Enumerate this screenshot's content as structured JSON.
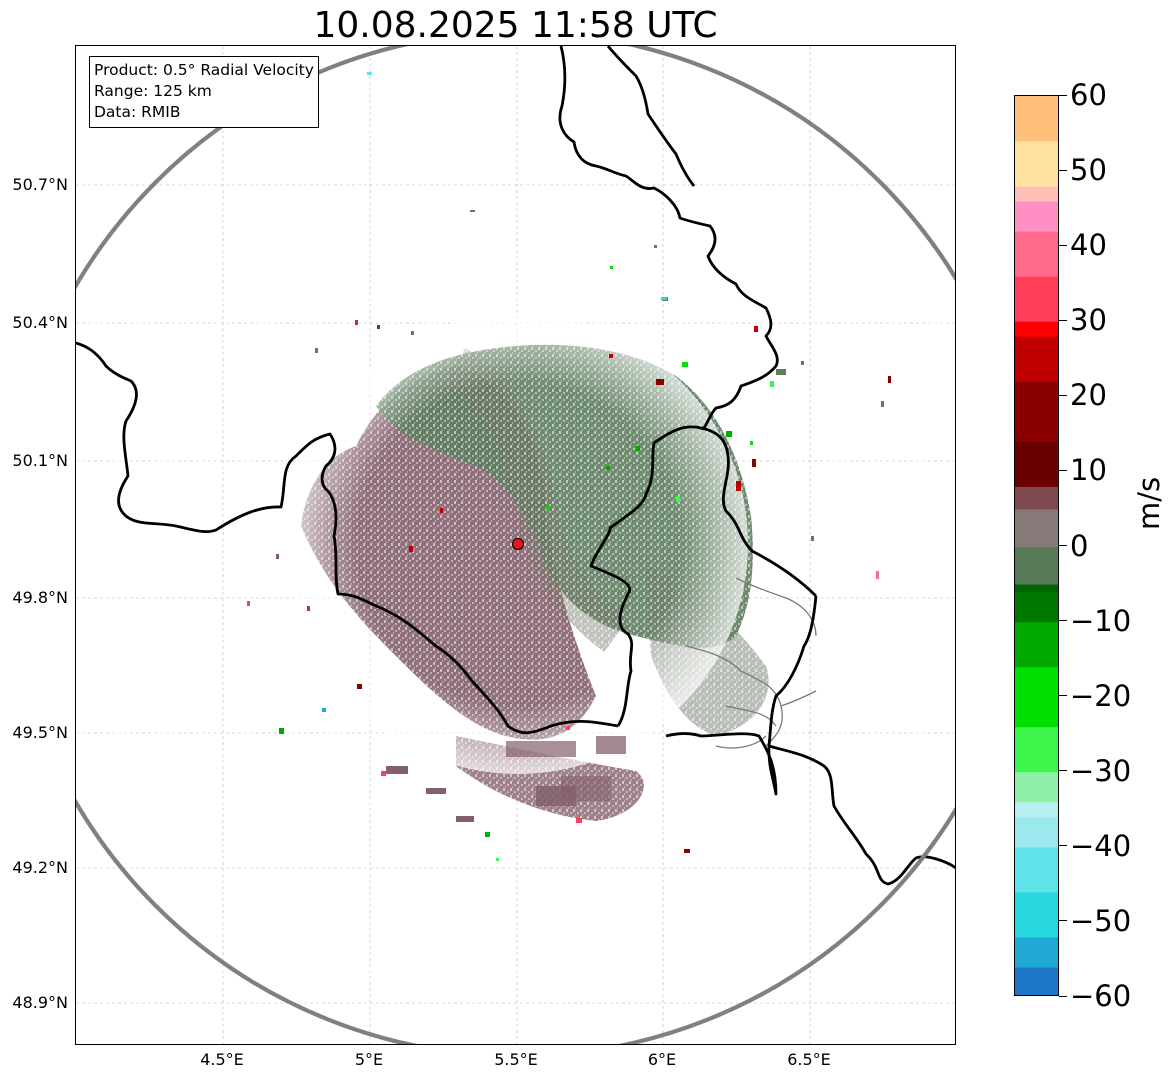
{
  "title": "10.08.2025 11:58 UTC",
  "info_box": {
    "product": "Product: 0.5° Radial Velocity",
    "range": "Range: 125 km",
    "data": "Data: RMIB"
  },
  "map": {
    "lon_range": [
      4.0,
      7.0
    ],
    "lat_range": [
      48.8,
      51.0
    ],
    "radar_site": {
      "lon": 5.505,
      "lat": 49.914
    },
    "lat_ticks": [
      {
        "value": 50.7,
        "label": "50.7°N"
      },
      {
        "value": 50.4,
        "label": "50.4°N"
      },
      {
        "value": 50.1,
        "label": "50.1°N"
      },
      {
        "value": 49.8,
        "label": "49.8°N"
      },
      {
        "value": 49.5,
        "label": "49.5°N"
      },
      {
        "value": 49.2,
        "label": "49.2°N"
      },
      {
        "value": 48.9,
        "label": "48.9°N"
      }
    ],
    "lon_ticks": [
      {
        "value": 4.5,
        "label": "4.5°E"
      },
      {
        "value": 5.0,
        "label": "5°E"
      },
      {
        "value": 5.5,
        "label": "5.5°E"
      },
      {
        "value": 6.0,
        "label": "6°E"
      },
      {
        "value": 6.5,
        "label": "6.5°E"
      }
    ],
    "colors": {
      "border": "#000000",
      "range_ring": "#808080",
      "grid": "#b0b0b0",
      "radar_site": "#e8141c"
    }
  },
  "colorbar": {
    "unit": "m/s",
    "min": -60,
    "max": 60,
    "ticks": [
      {
        "value": 60,
        "label": "60"
      },
      {
        "value": 50,
        "label": "50"
      },
      {
        "value": 40,
        "label": "40"
      },
      {
        "value": 30,
        "label": "30"
      },
      {
        "value": 20,
        "label": "20"
      },
      {
        "value": 10,
        "label": "10"
      },
      {
        "value": 0,
        "label": "0"
      },
      {
        "value": -10,
        "label": "−10"
      },
      {
        "value": -20,
        "label": "−20"
      },
      {
        "value": -30,
        "label": "−30"
      },
      {
        "value": -40,
        "label": "−40"
      },
      {
        "value": -50,
        "label": "−50"
      },
      {
        "value": -60,
        "label": "−60"
      }
    ],
    "stops": [
      {
        "value": -60,
        "color": "#1f77c8"
      },
      {
        "value": -56,
        "color": "#20a9d4"
      },
      {
        "value": -52,
        "color": "#27d6df"
      },
      {
        "value": -46,
        "color": "#5ee3e8"
      },
      {
        "value": -40,
        "color": "#9be9ee"
      },
      {
        "value": -36,
        "color": "#b8f0f2"
      },
      {
        "value": -34,
        "color": "#90f0a8"
      },
      {
        "value": -30,
        "color": "#3cf54a"
      },
      {
        "value": -24,
        "color": "#00e000"
      },
      {
        "value": -16,
        "color": "#00a800"
      },
      {
        "value": -10,
        "color": "#007800"
      },
      {
        "value": -6,
        "color": "#006400"
      },
      {
        "value": -5,
        "color": "#567a58"
      },
      {
        "value": 0,
        "color": "#867a78"
      },
      {
        "value": 5,
        "color": "#7e4a50"
      },
      {
        "value": 8,
        "color": "#6a0000"
      },
      {
        "value": 14,
        "color": "#8a0000"
      },
      {
        "value": 22,
        "color": "#c00000"
      },
      {
        "value": 28,
        "color": "#ff0000"
      },
      {
        "value": 30,
        "color": "#ff3f5a"
      },
      {
        "value": 36,
        "color": "#ff6a8a"
      },
      {
        "value": 42,
        "color": "#ff90c4"
      },
      {
        "value": 46,
        "color": "#ffbeb8"
      },
      {
        "value": 48,
        "color": "#ffe2a0"
      },
      {
        "value": 54,
        "color": "#ffc07a"
      },
      {
        "value": 60,
        "color": "#ff9a50"
      }
    ]
  }
}
